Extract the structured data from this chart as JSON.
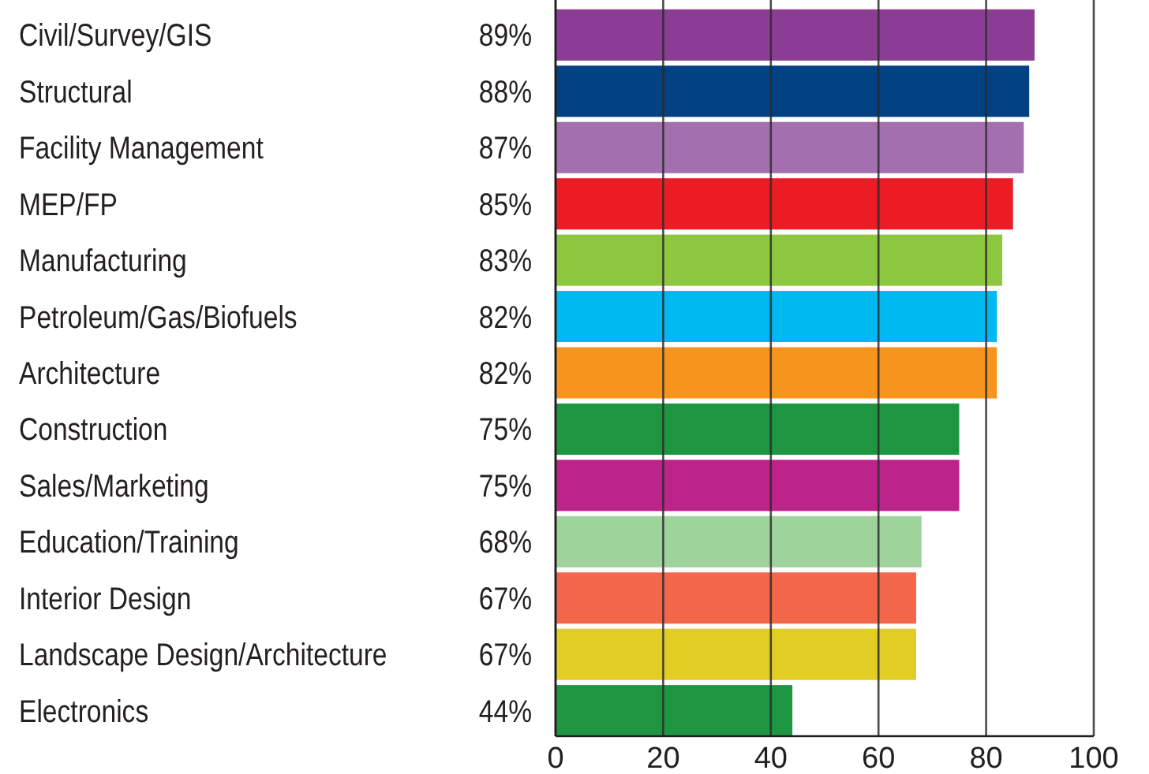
{
  "chart_data": {
    "type": "bar",
    "orientation": "horizontal",
    "categories": [
      "Civil/Survey/GIS",
      "Structural",
      "Facility Management",
      "MEP/FP",
      "Manufacturing",
      "Petroleum/Gas/Biofuels",
      "Architecture",
      "Construction",
      "Sales/Marketing",
      "Education/Training",
      "Interior Design",
      "Landscape Design/Architecture",
      "Electronics"
    ],
    "values": [
      89,
      88,
      87,
      85,
      83,
      82,
      82,
      75,
      75,
      68,
      67,
      67,
      44
    ],
    "colors": [
      "#8b3d96",
      "#024182",
      "#a46fae",
      "#ec1c24",
      "#8dc63f",
      "#00b9f1",
      "#f7941d",
      "#1e9641",
      "#bc2489",
      "#9fd39c",
      "#f26749",
      "#e2cd25",
      "#1e9641"
    ],
    "value_labels": [
      "89%",
      "88%",
      "87%",
      "85%",
      "83%",
      "82%",
      "82%",
      "75%",
      "75%",
      "68%",
      "67%",
      "67%",
      "44%"
    ],
    "xlim": [
      0,
      100
    ],
    "xticks": [
      0,
      20,
      40,
      60,
      80,
      100
    ],
    "grid": "x"
  }
}
